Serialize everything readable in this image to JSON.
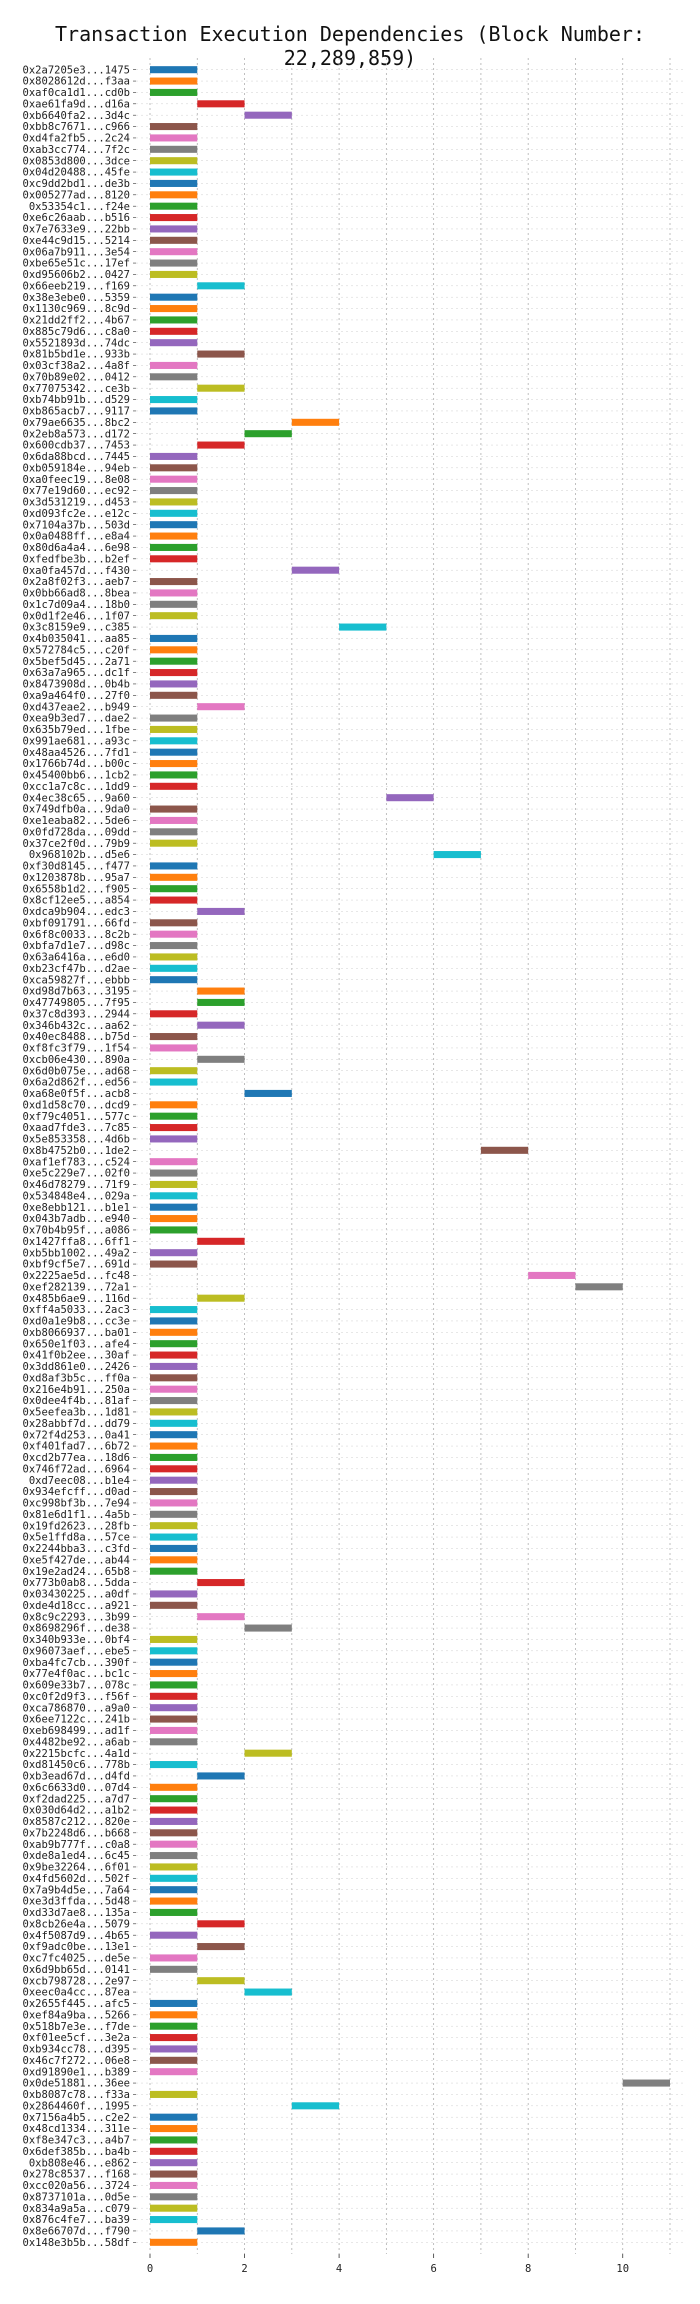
{
  "chart_data": {
    "type": "bar",
    "orientation": "horizontal-gantt",
    "title": "Transaction Execution Dependencies (Block Number: 22,289,859)",
    "xlabel": "",
    "ylabel": "",
    "xlim": [
      0,
      11
    ],
    "x_ticks": [
      0,
      2,
      4,
      6,
      8,
      10
    ],
    "grid": "dotted vertical at integer x",
    "bar_duration": 1,
    "palette": [
      "#1f77b4",
      "#ff7f0e",
      "#2ca02c",
      "#d62728",
      "#9467bd",
      "#8c564b",
      "#e377c2",
      "#7f7f7f",
      "#bcbd22",
      "#17becf"
    ],
    "categories": [
      "0x2a7205e3...1475",
      "0x8028612d...f3aa",
      "0xaf0ca1d1...cd0b",
      "0xae61fa9d...d16a",
      "0xb6640fa2...3d4c",
      "0xbb8c7671...c966",
      "0xd4fa2fb5...2c24",
      "0xab3cc774...7f2c",
      "0x0853d800...3dce",
      "0x04d20488...45fe",
      "0xc9dd2bd1...de3b",
      "0x005277ad...8120",
      "0x53354c1...f24e",
      "0xe6c26aab...b516",
      "0x7e7633e9...22bb",
      "0xe44c9d15...5214",
      "0x06a7b911...3e54",
      "0xbe65e51c...17ef",
      "0xd95606b2...0427",
      "0x66eeb219...f169",
      "0x38e3ebe0...5359",
      "0x1130c969...8c9d",
      "0x21dd2ff2...4b67",
      "0x885c79d6...c8a0",
      "0x5521893d...74dc",
      "0x81b5bd1e...933b",
      "0x03cf38a2...4a8f",
      "0x70b89e02...0412",
      "0x77075342...ce3b",
      "0xb74bb91b...d529",
      "0xb865acb7...9117",
      "0x79ae6635...8bc2",
      "0x2eb8a573...d172",
      "0x600cdb37...7453",
      "0x6da88bcd...7445",
      "0xb059184e...94eb",
      "0xa0feec19...8e08",
      "0x77e19d60...ec92",
      "0x3d531219...d453",
      "0xd093fc2e...e12c",
      "0x7104a37b...503d",
      "0x0a0488ff...e8a4",
      "0x80d6a4a4...6e98",
      "0xfedfbe3b...b2ef",
      "0xa0fa457d...f430",
      "0x2a8f02f3...aeb7",
      "0x0bb66ad8...8bea",
      "0x1c7d09a4...18b0",
      "0x0d1f2e46...1f07",
      "0x3c8159e9...c385",
      "0x4b035041...aa85",
      "0x572784c5...c20f",
      "0x5bef5d45...2a71",
      "0x63a7a965...dc1f",
      "0x8473908d...0b4b",
      "0xa9a464f0...27f0",
      "0xd437eae2...b949",
      "0xea9b3ed7...dae2",
      "0x635b79ed...1fbe",
      "0x991ae681...a93c",
      "0x48aa4526...7fd1",
      "0x1766b74d...b00c",
      "0x45400bb6...1cb2",
      "0xcc1a7c8c...1dd9",
      "0x4ec38c65...9a60",
      "0x749dfb0a...9da0",
      "0xe1eaba82...5de6",
      "0x0fd728da...09dd",
      "0x37ce2f0d...79b9",
      "0x968102b...d5e6",
      "0xf30d8145...f477",
      "0x1203878b...95a7",
      "0x6558b1d2...f905",
      "0x8cf12ee5...a854",
      "0xdca9b904...edc3",
      "0xbf091791...66fd",
      "0x6f8c0033...8c2b",
      "0xbfa7d1e7...d98c",
      "0x63a6416a...e6d0",
      "0xb23cf47b...d2ae",
      "0xca59827f...ebbb",
      "0xd98d7b63...3195",
      "0x47749805...7f95",
      "0x37c8d393...2944",
      "0x346b432c...aa62",
      "0x40ec8488...b75d",
      "0xf8fc3f79...1f54",
      "0xcb06e430...890a",
      "0x6d0b075e...ad68",
      "0x6a2d862f...ed56",
      "0xa68e0f5f...acb8",
      "0xd1d58c70...dcd9",
      "0xf79c4051...577c",
      "0xaad7fde3...7c85",
      "0x5e853358...4d6b",
      "0x8b4752b0...1de2",
      "0xaf1ef783...c524",
      "0xe5c229e7...02f0",
      "0x46d78279...71f9",
      "0x534848e4...029a",
      "0xe8ebb121...b1e1",
      "0x043b7adb...e940",
      "0x70b4b95f...a086",
      "0x1427ffa8...6ff1",
      "0xb5bb1002...49a2",
      "0xbf9cf5e7...691d",
      "0x2225ae5d...fc48",
      "0xef282139...72a1",
      "0x485b6ae9...116d",
      "0xff4a5033...2ac3",
      "0xd0a1e9b8...cc3e",
      "0xb8066937...ba01",
      "0x650e1f03...afe4",
      "0x41f0b2ee...30af",
      "0x3dd861e0...2426",
      "0xd8af3b5c...ff0a",
      "0x216e4b91...250a",
      "0x0dee4f4b...81af",
      "0x5eefea3b...1d81",
      "0x28abbf7d...dd79",
      "0x72f4d253...0a41",
      "0xf401fad7...6b72",
      "0xcd2b77ea...18d6",
      "0x746f72ad...6964",
      "0xd7eec08...b1e4",
      "0x934efcff...d0ad",
      "0xc998bf3b...7e94",
      "0x81e6d1f1...4a5b",
      "0x19fd2623...28fb",
      "0x5e1ffd8a...57ce",
      "0x2244bba3...c3fd",
      "0xe5f427de...ab44",
      "0x19e2ad24...65b8",
      "0x773b0ab8...5dda",
      "0x03430225...a0df",
      "0xde4d18cc...a921",
      "0x8c9c2293...3b99",
      "0x8698296f...de38",
      "0x340b933e...0bf4",
      "0x96073aef...ebe5",
      "0xba4fc7cb...390f",
      "0x77e4f0ac...bc1c",
      "0x609e33b7...078c",
      "0xc0f2d9f3...f56f",
      "0xca786870...a9a0",
      "0x6ee7122c...241b",
      "0xeb698499...ad1f",
      "0x4482be92...a6ab",
      "0x2215bcfc...4a1d",
      "0xd81450c6...778b",
      "0xb3ead67d...d4fd",
      "0x6c6633d0...07d4",
      "0xf2dad225...a7d7",
      "0x030d64d2...a1b2",
      "0x8587c212...820e",
      "0x7b2248d6...b668",
      "0xab9b777f...c0a8",
      "0xde8a1ed4...6c45",
      "0x9be32264...6f01",
      "0x4fd5602d...502f",
      "0x7a9b4d5e...7a64",
      "0xe3d3ffda...5d48",
      "0xd33d7ae8...135a",
      "0x8cb26e4a...5079",
      "0x4f5087d9...4b65",
      "0xf9adc0be...13e1",
      "0xc7fc4025...de5e",
      "0x6d9bb65d...0141",
      "0xcb798728...2e97",
      "0xeec0a4cc...87ea",
      "0x2655f445...afc5",
      "0xef84a9ba...5266",
      "0x518b7e3e...f7de",
      "0xf01ee5cf...3e2a",
      "0xb934cc78...d395",
      "0x46c7f272...06e8",
      "0xd91890e1...b389",
      "0x0de51881...36ee",
      "0xb8087c78...f33a",
      "0x2864460f...1995",
      "0x7156a4b5...c2e2",
      "0x48cd1334...311e",
      "0xf8e347c3...a4b7",
      "0x6def385b...ba4b",
      "0xb808e46...e862",
      "0x278c8537...f168",
      "0xcc020a56...3724",
      "0x8737101a...0d5e",
      "0x834a9a5a...c079",
      "0x876c4fe7...ba39",
      "0x8e66707d...f790",
      "0x148e3b5b...58df"
    ],
    "values": [
      0,
      0,
      0,
      1,
      2,
      0,
      0,
      0,
      0,
      0,
      0,
      0,
      0,
      0,
      0,
      0,
      0,
      0,
      0,
      1,
      0,
      0,
      0,
      0,
      0,
      1,
      0,
      0,
      1,
      0,
      0,
      3,
      2,
      1,
      0,
      0,
      0,
      0,
      0,
      0,
      0,
      0,
      0,
      0,
      3,
      0,
      0,
      0,
      0,
      4,
      0,
      0,
      0,
      0,
      0,
      0,
      1,
      0,
      0,
      0,
      0,
      0,
      0,
      0,
      5,
      0,
      0,
      0,
      0,
      6,
      0,
      0,
      0,
      0,
      1,
      0,
      0,
      0,
      0,
      0,
      0,
      1,
      1,
      0,
      1,
      0,
      0,
      1,
      0,
      0,
      2,
      0,
      0,
      0,
      0,
      7,
      0,
      0,
      0,
      0,
      0,
      0,
      0,
      1,
      0,
      0,
      8,
      9,
      1,
      0,
      0,
      0,
      0,
      0,
      0,
      0,
      0,
      0,
      0,
      0,
      0,
      0,
      0,
      0,
      0,
      0,
      0,
      0,
      0,
      0,
      0,
      0,
      0,
      1,
      0,
      0,
      1,
      2,
      0,
      0,
      0,
      0,
      0,
      0,
      0,
      0,
      0,
      0,
      2,
      0,
      1,
      0,
      0,
      0,
      0,
      0,
      0,
      0,
      0,
      0,
      0,
      0,
      0,
      1,
      0,
      1,
      0,
      0,
      1,
      2,
      0,
      0,
      0,
      0,
      0,
      0,
      0,
      10,
      0,
      3,
      0,
      0,
      0,
      0,
      0,
      0,
      0,
      0,
      0,
      0,
      1,
      0
    ]
  }
}
